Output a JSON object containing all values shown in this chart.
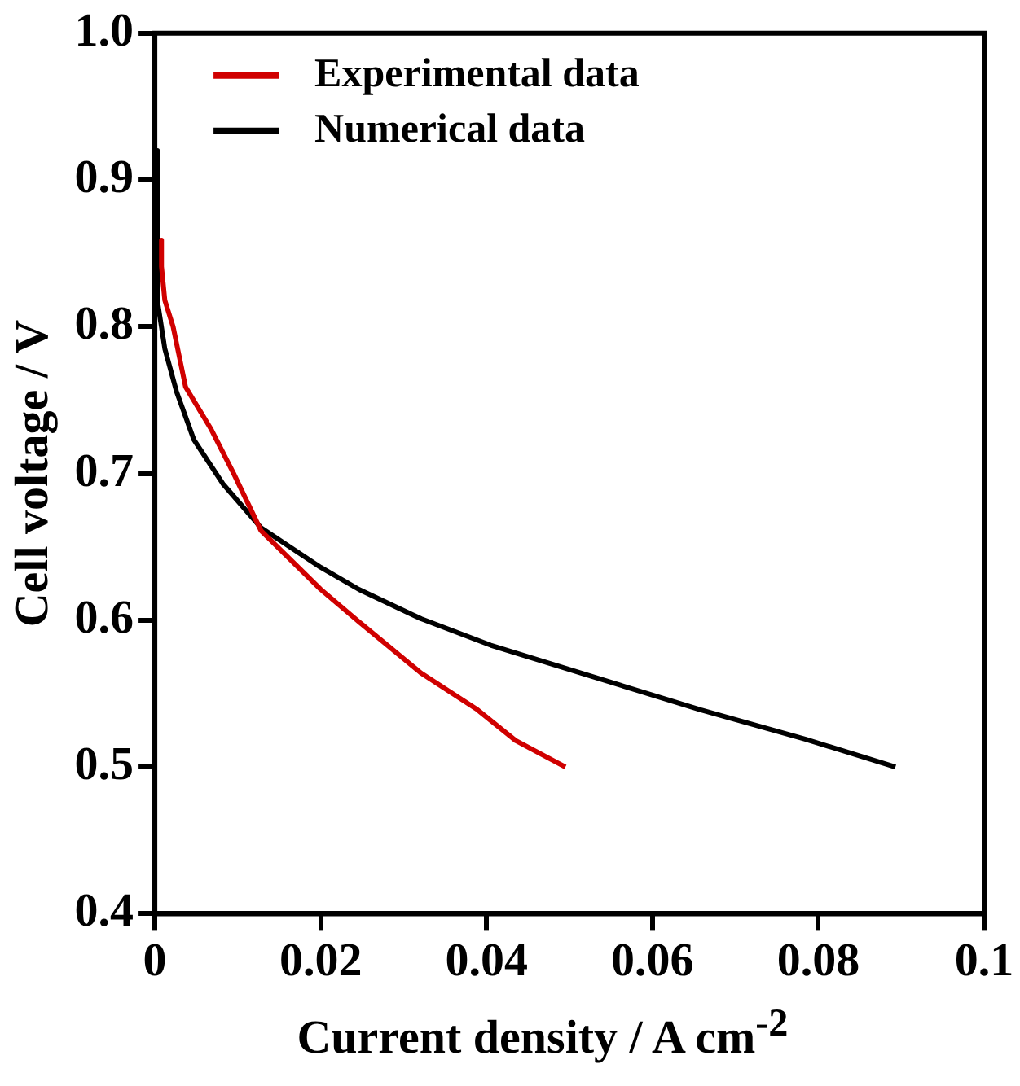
{
  "chart_data": {
    "type": "line",
    "xlabel": "Current density / A cm$^{-2}$",
    "ylabel": "Cell voltage / V",
    "xlim": [
      0,
      0.1
    ],
    "xticks": [
      0,
      0.02,
      0.04,
      0.06,
      0.08,
      0.1
    ],
    "ylim": [
      0.4,
      1.0
    ],
    "yticks": [
      {
        "value": 0.4,
        "label": "0.4"
      },
      {
        "value": 0.5,
        "label": "0.5"
      },
      {
        "value": 0.6,
        "label": "0.6"
      },
      {
        "value": 0.7,
        "label": "0.7"
      },
      {
        "value": 0.8,
        "label": "0.8"
      },
      {
        "value": 0.9,
        "label": "0.9"
      },
      {
        "value": 1.0,
        "label": "1.0"
      }
    ],
    "grid": false,
    "legend": "top left",
    "marker": "none",
    "line_style": "solid",
    "series": [
      {
        "name": "Experimental data",
        "color": "#d00000",
        "x": [
          0.0008,
          0.0008,
          0.0012,
          0.0022,
          0.0037,
          0.0068,
          0.0095,
          0.0128,
          0.02,
          0.0246,
          0.0321,
          0.0389,
          0.0435,
          0.0495
        ],
        "values": [
          0.859,
          0.841,
          0.818,
          0.8,
          0.759,
          0.73,
          0.7,
          0.661,
          0.621,
          0.599,
          0.564,
          0.539,
          0.518,
          0.5
        ]
      },
      {
        "name": "Numerical data",
        "color": "#000000",
        "x": [
          0.0003,
          0.0003,
          0.0012,
          0.0026,
          0.0047,
          0.0082,
          0.0128,
          0.02,
          0.0246,
          0.0321,
          0.0405,
          0.0531,
          0.0658,
          0.0784,
          0.0893
        ],
        "values": [
          0.92,
          0.818,
          0.785,
          0.756,
          0.723,
          0.693,
          0.663,
          0.636,
          0.621,
          0.601,
          0.583,
          0.561,
          0.539,
          0.519,
          0.5
        ]
      }
    ]
  }
}
